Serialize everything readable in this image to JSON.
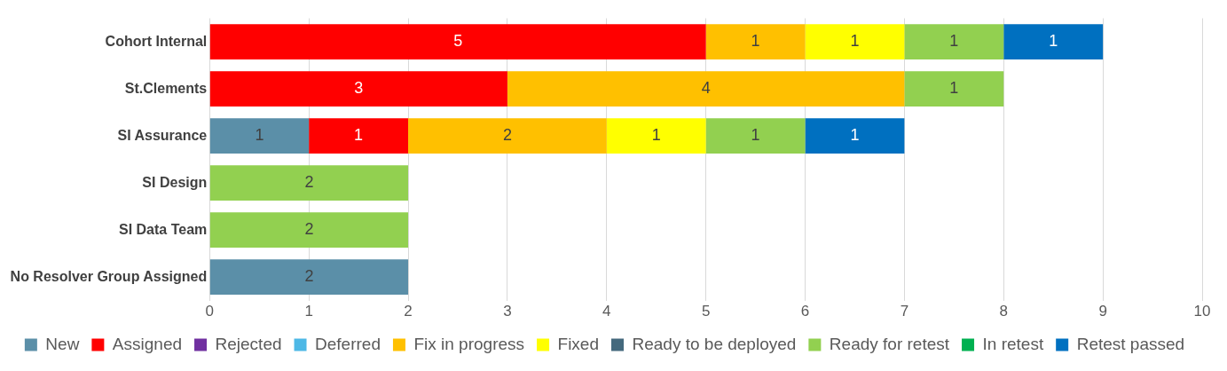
{
  "chart_data": {
    "type": "bar",
    "orientation": "horizontal",
    "stacked": true,
    "categories": [
      "Cohort Internal",
      "St.Clements",
      "SI Assurance",
      "SI Design",
      "SI Data Team",
      "No Resolver Group Assigned"
    ],
    "series": [
      {
        "name": "New",
        "color": "#5b8fa8",
        "values": [
          null,
          null,
          1,
          null,
          null,
          2
        ]
      },
      {
        "name": "Assigned",
        "color": "#ff0000",
        "values": [
          5,
          3,
          1,
          null,
          null,
          null
        ]
      },
      {
        "name": "Rejected",
        "color": "#7030a0",
        "values": [
          null,
          null,
          null,
          null,
          null,
          null
        ]
      },
      {
        "name": "Deferred",
        "color": "#4db8e6",
        "values": [
          null,
          null,
          null,
          null,
          null,
          null
        ]
      },
      {
        "name": "Fix in progress",
        "color": "#ffc000",
        "values": [
          1,
          4,
          2,
          null,
          null,
          null
        ]
      },
      {
        "name": "Fixed",
        "color": "#ffff00",
        "values": [
          1,
          null,
          1,
          null,
          null,
          null
        ]
      },
      {
        "name": "Ready to be deployed",
        "color": "#44697d",
        "values": [
          null,
          null,
          null,
          null,
          null,
          null
        ]
      },
      {
        "name": "Ready for retest",
        "color": "#92d050",
        "values": [
          1,
          1,
          1,
          2,
          2,
          null
        ]
      },
      {
        "name": "In retest",
        "color": "#00b050",
        "values": [
          null,
          null,
          null,
          null,
          null,
          null
        ]
      },
      {
        "name": "Retest passed",
        "color": "#0070c0",
        "values": [
          1,
          null,
          1,
          null,
          null,
          null
        ]
      }
    ],
    "xlim": [
      0,
      10
    ],
    "xticks": [
      0,
      1,
      2,
      3,
      4,
      5,
      6,
      7,
      8,
      9,
      10
    ],
    "grid": "x",
    "legend": "bottom",
    "data_labels": true
  }
}
